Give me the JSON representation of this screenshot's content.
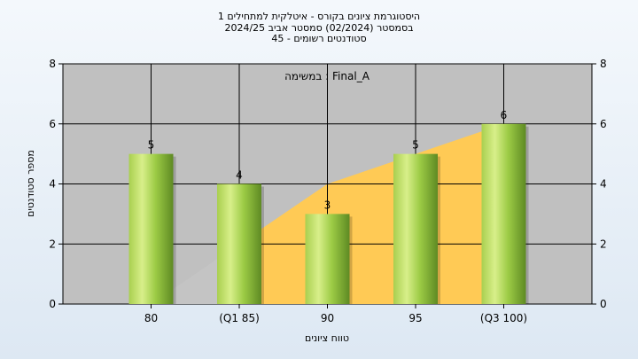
{
  "title_lines": [
    "היסטוגרמת ציונים בקורס - איטלקית למתחילים 1",
    "בסמסטר  (02/2024)  סמסטר אביב 2024/25",
    "סטודנטים רשומים - 45"
  ],
  "chart_data": {
    "type": "bar",
    "title": "היסטוגרמת ציונים בקורס - איטלקית למתחילים 1",
    "categories": [
      "80",
      "(Q1 85)",
      "90",
      "95",
      "(Q3 100)"
    ],
    "values": [
      5,
      4,
      3,
      5,
      6
    ],
    "xlabel": "טווח ציונים",
    "ylabel": "מספר סטודנטים",
    "ylim": [
      0,
      8
    ],
    "yticks": [
      0,
      2,
      4,
      6,
      8
    ],
    "grid": true,
    "legend": "top-center",
    "legend_text": "במשימה : Final_A",
    "area_series": [
      0,
      2,
      4,
      5,
      6
    ],
    "colors": {
      "plot_background": "#c0c0c0",
      "bar": "#8fbf3a",
      "area_orange": "#ffca55",
      "area_gray": "#c4c4c4"
    }
  }
}
